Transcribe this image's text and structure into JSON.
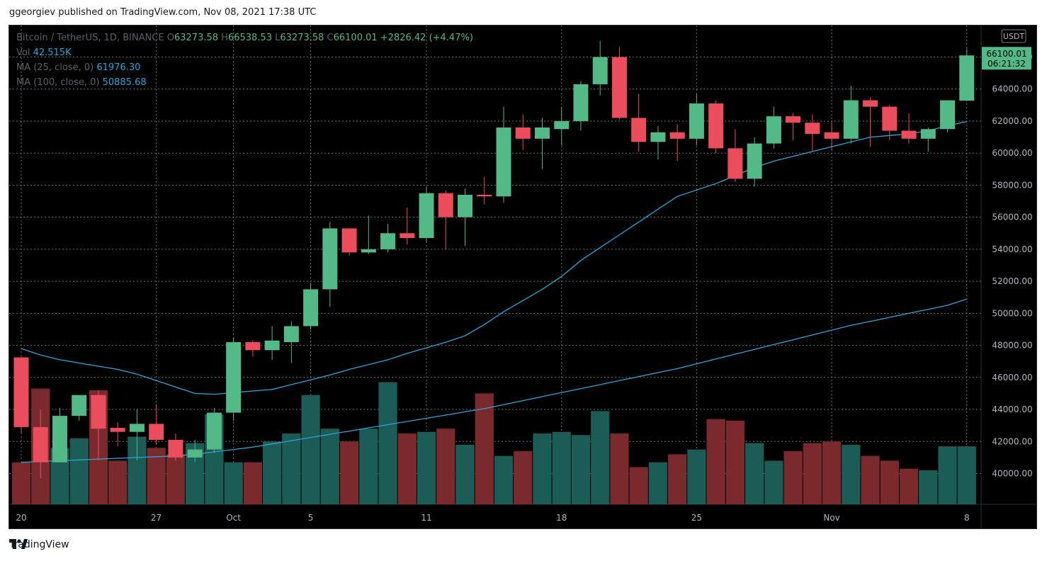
{
  "header": {
    "published": "ggeorgiev published on TradingView.com, Nov 08, 2021 17:38 UTC"
  },
  "footer": {
    "brand": "TradingView",
    "logo_icon": "tradingview-logo-icon"
  },
  "legend": {
    "symbol": "Bitcoin / TetherUS, 1D, BINANCE",
    "o_label": "O",
    "o": "63273.58",
    "h_label": "H",
    "h": "66538.53",
    "l_label": "L",
    "l": "63273.58",
    "c_label": "C",
    "c": "66100.01",
    "change": "+2826.42 (+4.47%)",
    "vol_label": "Vol",
    "vol": "42.515K",
    "ma25_label": "MA (25, close, 0)",
    "ma25": "61976.30",
    "ma100_label": "MA (100, close, 0)",
    "ma100": "50885.68"
  },
  "price_axis": {
    "currency": "USDT",
    "last_price": "66100.01",
    "countdown": "06:21:32"
  },
  "colors": {
    "up": "#53b987",
    "down": "#eb4d5c",
    "vol_up": "#1b5c56",
    "vol_down": "#7a2a2d",
    "ma": "#2ca3d9",
    "grid": "#7a7a7a"
  },
  "chart_data": {
    "type": "candlestick",
    "ylim": [
      38000,
      68000
    ],
    "y_ticks": [
      40000,
      42000,
      44000,
      46000,
      48000,
      50000,
      52000,
      54000,
      56000,
      58000,
      60000,
      62000,
      64000,
      66000
    ],
    "y_tick_labels": [
      "40000.00",
      "42000.00",
      "44000.00",
      "46000.00",
      "48000.00",
      "50000.00",
      "52000.00",
      "54000.00",
      "56000.00",
      "58000.00",
      "60000.00",
      "62000.00",
      "64000.00",
      "66000.00"
    ],
    "x_ticks": [
      {
        "index": 0,
        "label": "20"
      },
      {
        "index": 7,
        "label": "27"
      },
      {
        "index": 11,
        "label": "Oct"
      },
      {
        "index": 15,
        "label": "5"
      },
      {
        "index": 21,
        "label": "11"
      },
      {
        "index": 28,
        "label": "18"
      },
      {
        "index": 35,
        "label": "25"
      },
      {
        "index": 42,
        "label": "Nov"
      },
      {
        "index": 49,
        "label": "8"
      }
    ],
    "candles": [
      {
        "o": 47250,
        "h": 47300,
        "l": 42500,
        "c": 42900
      },
      {
        "o": 42900,
        "h": 44000,
        "l": 39700,
        "c": 40700
      },
      {
        "o": 40700,
        "h": 44100,
        "l": 40700,
        "c": 43600
      },
      {
        "o": 43600,
        "h": 44900,
        "l": 43300,
        "c": 44900
      },
      {
        "o": 44900,
        "h": 45200,
        "l": 40800,
        "c": 42800
      },
      {
        "o": 42850,
        "h": 43200,
        "l": 41700,
        "c": 42600
      },
      {
        "o": 42600,
        "h": 44000,
        "l": 40800,
        "c": 43100
      },
      {
        "o": 43100,
        "h": 44300,
        "l": 41800,
        "c": 42100
      },
      {
        "o": 42100,
        "h": 42500,
        "l": 40800,
        "c": 41000
      },
      {
        "o": 41000,
        "h": 42100,
        "l": 40700,
        "c": 41500
      },
      {
        "o": 41500,
        "h": 44100,
        "l": 41300,
        "c": 43800
      },
      {
        "o": 43800,
        "h": 48500,
        "l": 43300,
        "c": 48200
      },
      {
        "o": 48200,
        "h": 48300,
        "l": 47300,
        "c": 47700
      },
      {
        "o": 47700,
        "h": 49200,
        "l": 47100,
        "c": 48300
      },
      {
        "o": 48200,
        "h": 49500,
        "l": 46900,
        "c": 49200
      },
      {
        "o": 49200,
        "h": 51900,
        "l": 49000,
        "c": 51500
      },
      {
        "o": 51500,
        "h": 55700,
        "l": 50400,
        "c": 55300
      },
      {
        "o": 55300,
        "h": 55300,
        "l": 53600,
        "c": 53800
      },
      {
        "o": 53800,
        "h": 56100,
        "l": 53700,
        "c": 54000
      },
      {
        "o": 54000,
        "h": 55600,
        "l": 53800,
        "c": 55000
      },
      {
        "o": 55000,
        "h": 56600,
        "l": 54300,
        "c": 54700
      },
      {
        "o": 54700,
        "h": 57900,
        "l": 54400,
        "c": 57500
      },
      {
        "o": 57500,
        "h": 57700,
        "l": 54000,
        "c": 56000
      },
      {
        "o": 56000,
        "h": 57800,
        "l": 54200,
        "c": 57400
      },
      {
        "o": 57400,
        "h": 58500,
        "l": 56800,
        "c": 57300
      },
      {
        "o": 57300,
        "h": 62900,
        "l": 56900,
        "c": 61600
      },
      {
        "o": 61600,
        "h": 62400,
        "l": 60200,
        "c": 60900
      },
      {
        "o": 60900,
        "h": 62200,
        "l": 59000,
        "c": 61600
      },
      {
        "o": 61500,
        "h": 62900,
        "l": 60500,
        "c": 62000
      },
      {
        "o": 62000,
        "h": 64500,
        "l": 61400,
        "c": 64300
      },
      {
        "o": 64300,
        "h": 67000,
        "l": 63600,
        "c": 66000
      },
      {
        "o": 66000,
        "h": 66600,
        "l": 62100,
        "c": 62200
      },
      {
        "o": 62200,
        "h": 63700,
        "l": 60100,
        "c": 60700
      },
      {
        "o": 60700,
        "h": 61700,
        "l": 59600,
        "c": 61300
      },
      {
        "o": 61300,
        "h": 61800,
        "l": 59500,
        "c": 60900
      },
      {
        "o": 60900,
        "h": 63700,
        "l": 60500,
        "c": 63100
      },
      {
        "o": 63100,
        "h": 63300,
        "l": 60000,
        "c": 60300
      },
      {
        "o": 60300,
        "h": 61500,
        "l": 58200,
        "c": 58400
      },
      {
        "o": 58400,
        "h": 61000,
        "l": 57900,
        "c": 60600
      },
      {
        "o": 60600,
        "h": 62900,
        "l": 60300,
        "c": 62300
      },
      {
        "o": 62300,
        "h": 62500,
        "l": 60800,
        "c": 61900
      },
      {
        "o": 61900,
        "h": 62400,
        "l": 60100,
        "c": 61200
      },
      {
        "o": 61300,
        "h": 61900,
        "l": 60200,
        "c": 60900
      },
      {
        "o": 60900,
        "h": 64200,
        "l": 60600,
        "c": 63300
      },
      {
        "o": 63300,
        "h": 63500,
        "l": 60400,
        "c": 62900
      },
      {
        "o": 62900,
        "h": 63000,
        "l": 60800,
        "c": 61400
      },
      {
        "o": 61400,
        "h": 62500,
        "l": 60600,
        "c": 60900
      },
      {
        "o": 60900,
        "h": 61600,
        "l": 60100,
        "c": 61500
      },
      {
        "o": 61500,
        "h": 63300,
        "l": 61300,
        "c": 63300
      },
      {
        "o": 63273.58,
        "h": 66538.53,
        "l": 63273.58,
        "c": 66100.01
      }
    ],
    "volume_tops": [
      40700,
      45300,
      41600,
      42200,
      45200,
      40800,
      42300,
      41600,
      41200,
      41900,
      43700,
      40700,
      40700,
      42000,
      42500,
      44900,
      42800,
      42000,
      42800,
      45700,
      42500,
      42600,
      42800,
      41800,
      45000,
      41100,
      41400,
      42500,
      42600,
      42400,
      43900,
      42500,
      40400,
      40700,
      41200,
      41500,
      43400,
      43300,
      41900,
      40800,
      41400,
      41900,
      42000,
      41800,
      41100,
      40800,
      40300,
      40200,
      41700,
      41700
    ],
    "ma25": [
      47800,
      47400,
      47100,
      46900,
      46700,
      46500,
      46200,
      45800,
      45400,
      45000,
      44950,
      45050,
      45150,
      45250,
      45550,
      45850,
      46150,
      46500,
      46800,
      47100,
      47500,
      47850,
      48200,
      48600,
      49300,
      50100,
      50800,
      51500,
      52300,
      53300,
      54100,
      54900,
      55700,
      56500,
      57300,
      57700,
      58100,
      58600,
      59100,
      59500,
      59800,
      60100,
      60400,
      60700,
      61000,
      61100,
      61200,
      61400,
      61700,
      61976.3
    ],
    "ma100": [
      40700,
      40750,
      40800,
      40850,
      40900,
      40950,
      41000,
      41050,
      41100,
      41200,
      41350,
      41500,
      41650,
      41850,
      42050,
      42250,
      42450,
      42650,
      42850,
      43050,
      43250,
      43450,
      43650,
      43850,
      44050,
      44300,
      44550,
      44800,
      45050,
      45300,
      45550,
      45800,
      46050,
      46300,
      46550,
      46850,
      47150,
      47450,
      47750,
      48050,
      48350,
      48650,
      48950,
      49250,
      49500,
      49750,
      50000,
      50250,
      50500,
      50885.68
    ]
  }
}
